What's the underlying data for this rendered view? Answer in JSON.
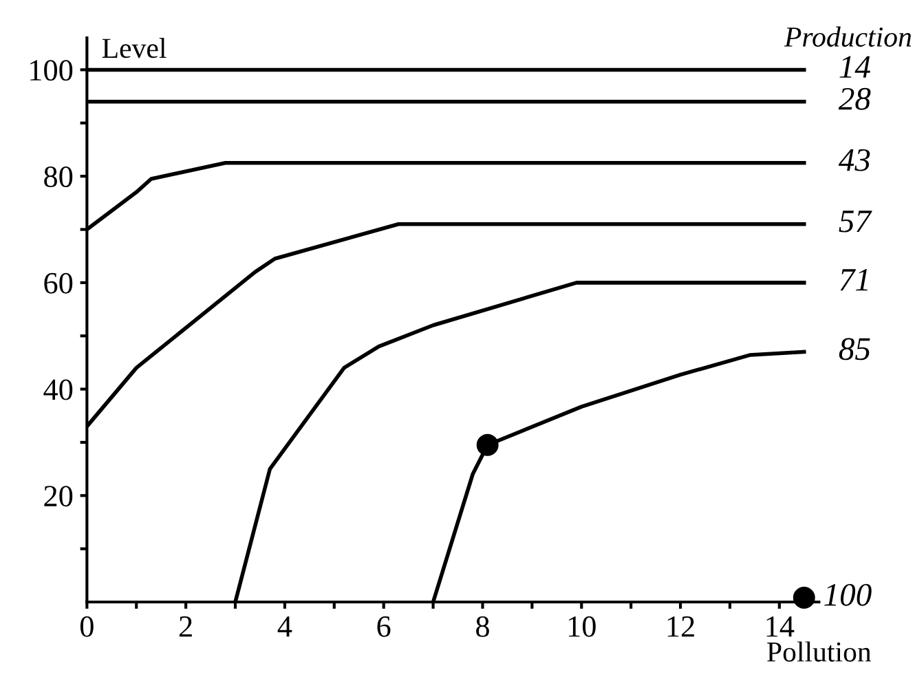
{
  "chart_data": {
    "type": "line",
    "xlabel": "Pollution",
    "ylabel": "Level",
    "legend_title": "Production",
    "xlim": [
      0,
      14.8
    ],
    "ylim": [
      0,
      106
    ],
    "xticks": [
      0,
      {
        "value": 1,
        "label": null
      },
      2,
      {
        "value": 3,
        "label": null
      },
      4,
      {
        "value": 5,
        "label": null
      },
      6,
      {
        "value": 7,
        "label": null
      },
      8,
      {
        "value": 9,
        "label": null
      },
      10,
      {
        "value": 11,
        "label": null
      },
      12,
      {
        "value": 13,
        "label": null
      },
      14
    ],
    "yticks": [
      {
        "value": 10,
        "label": null
      },
      20,
      {
        "value": 30,
        "label": null
      },
      40,
      {
        "value": 50,
        "label": null
      },
      60,
      {
        "value": 70,
        "label": null
      },
      80,
      {
        "value": 90,
        "label": null
      },
      100
    ],
    "color": "#000000",
    "marker": "none",
    "line_style": "solid",
    "grid": false,
    "legend": "right",
    "series": [
      {
        "name": "14",
        "x": [
          0,
          14.5
        ],
        "values": [
          100,
          100
        ]
      },
      {
        "name": "28",
        "x": [
          0,
          14.5
        ],
        "values": [
          94,
          94
        ]
      },
      {
        "name": "43",
        "x": [
          0,
          1,
          1.3,
          2.8,
          14.5
        ],
        "values": [
          70,
          77,
          79.5,
          82.5,
          82.5
        ]
      },
      {
        "name": "57",
        "x": [
          0,
          1,
          3.4,
          3.8,
          6.3,
          14.5
        ],
        "values": [
          33,
          44,
          62,
          64.5,
          71,
          71
        ]
      },
      {
        "name": "71",
        "x": [
          3,
          3.7,
          5.2,
          5.9,
          7,
          9.9,
          14.5
        ],
        "values": [
          0,
          25,
          44,
          48,
          52,
          60,
          60
        ]
      },
      {
        "name": "85",
        "x": [
          7,
          7.8,
          8.1,
          10,
          12,
          13.4,
          14.5
        ],
        "values": [
          0,
          24,
          29.5,
          36.7,
          42.7,
          46.4,
          47
        ]
      },
      {
        "type": "scatter",
        "marker": "circle",
        "x": [
          8.1
        ],
        "values": [
          29.5
        ]
      },
      {
        "name": "100",
        "type": "scatter",
        "marker": "circle",
        "x": [
          14.5
        ],
        "values": [
          0.8
        ]
      }
    ]
  }
}
